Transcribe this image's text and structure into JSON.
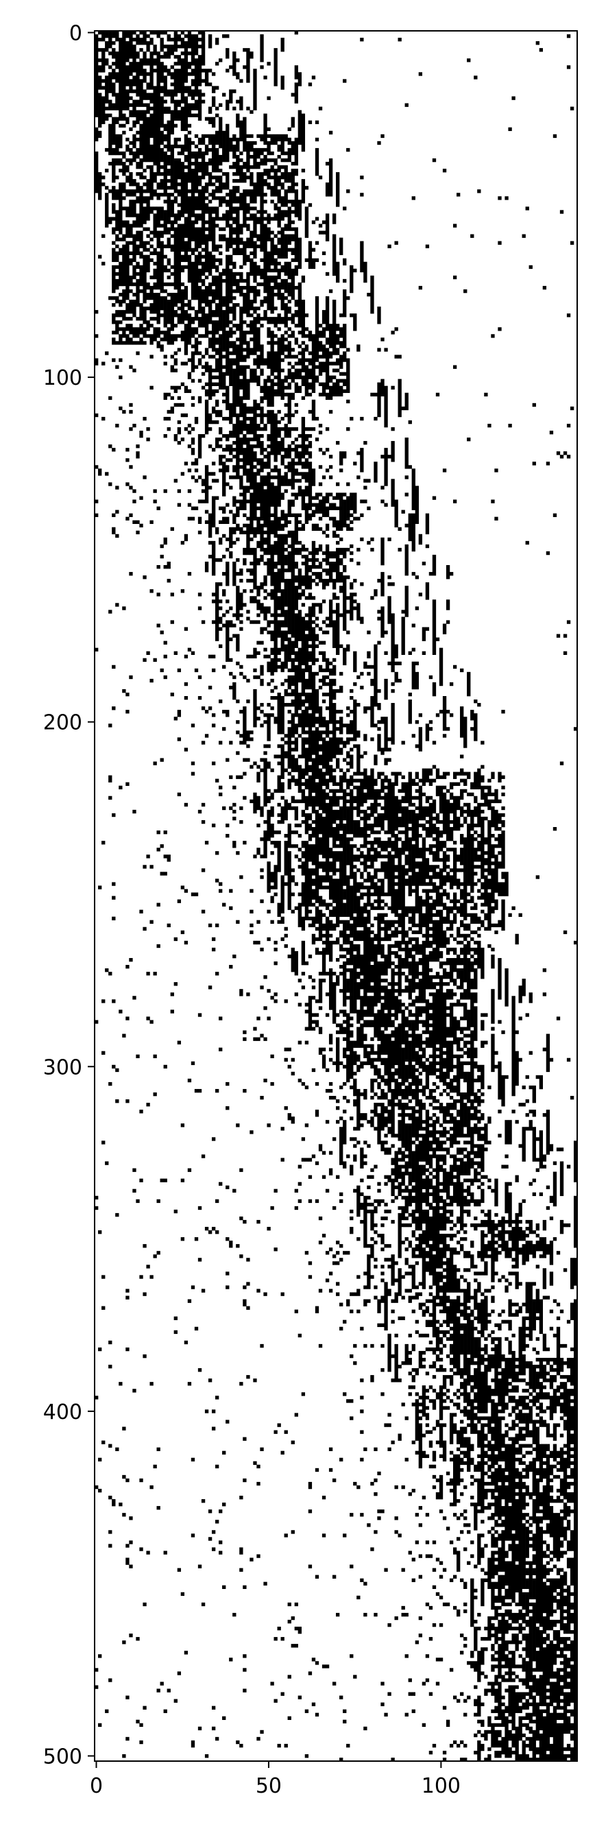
{
  "chart_data": {
    "type": "heatmap",
    "description_of_values": "binary matrix rendered with a black/white colormap (1 = black cell, 0 = white)",
    "n_cols": 140,
    "n_rows": 502,
    "xlim": [
      -0.5,
      139.5
    ],
    "ylim": [
      501.5,
      -0.5
    ],
    "xticks": [
      0,
      50,
      100
    ],
    "yticks": [
      0,
      100,
      200,
      300,
      400,
      500
    ],
    "colors": {
      "on": "#000000",
      "off": "#ffffff",
      "axis": "#000000"
    },
    "title": "",
    "xlabel": "",
    "ylabel": "",
    "band_centers_approx": [
      {
        "row": 0,
        "col": 6
      },
      {
        "row": 50,
        "col": 25
      },
      {
        "row": 100,
        "col": 40
      },
      {
        "row": 150,
        "col": 52
      },
      {
        "row": 200,
        "col": 62
      },
      {
        "row": 250,
        "col": 72
      },
      {
        "row": 300,
        "col": 88
      },
      {
        "row": 350,
        "col": 98
      },
      {
        "row": 400,
        "col": 112
      },
      {
        "row": 450,
        "col": 128
      },
      {
        "row": 500,
        "col": 132
      }
    ],
    "dense_blocks_approx": [
      {
        "rows": [
          0,
          25
        ],
        "cols": [
          0,
          30
        ]
      },
      {
        "rows": [
          30,
          90
        ],
        "cols": [
          5,
          58
        ]
      },
      {
        "rows": [
          85,
          105
        ],
        "cols": [
          45,
          72
        ]
      },
      {
        "rows": [
          115,
          130
        ],
        "cols": [
          42,
          62
        ]
      },
      {
        "rows": [
          134,
          144
        ],
        "cols": [
          60,
          74
        ]
      },
      {
        "rows": [
          150,
          160
        ],
        "cols": [
          58,
          72
        ]
      },
      {
        "rows": [
          200,
          210
        ],
        "cols": [
          60,
          75
        ]
      },
      {
        "rows": [
          215,
          260
        ],
        "cols": [
          60,
          118
        ]
      },
      {
        "rows": [
          255,
          300
        ],
        "cols": [
          72,
          110
        ]
      },
      {
        "rows": [
          300,
          340
        ],
        "cols": [
          88,
          112
        ]
      },
      {
        "rows": [
          345,
          355
        ],
        "cols": [
          112,
          130
        ]
      },
      {
        "rows": [
          385,
          405
        ],
        "cols": [
          108,
          139
        ]
      },
      {
        "rows": [
          410,
          500
        ],
        "cols": [
          115,
          139
        ]
      }
    ],
    "scatter_density": 0.12
  }
}
